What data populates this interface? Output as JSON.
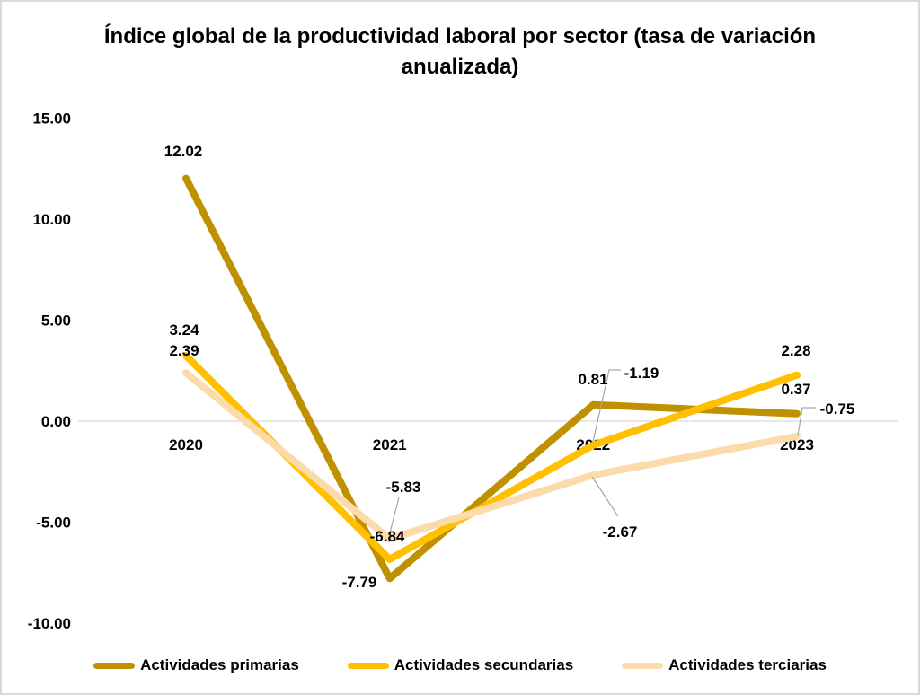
{
  "chart_data": {
    "type": "line",
    "title": "Índice global de la productividad laboral por sector (tasa de variación anualizada)",
    "categories": [
      "2020",
      "2021",
      "2022",
      "2023"
    ],
    "series": [
      {
        "name": "Actividades primarias",
        "color": "#BF9000",
        "values": [
          12.02,
          -7.79,
          0.81,
          0.37
        ]
      },
      {
        "name": "Actividades secundarias",
        "color": "#FFC000",
        "values": [
          3.24,
          -6.84,
          -1.19,
          2.28
        ]
      },
      {
        "name": "Actividades terciarias",
        "color": "#FCDBAB",
        "values": [
          2.39,
          -5.83,
          -2.67,
          -0.75
        ]
      }
    ],
    "y_axis": {
      "min": -10,
      "max": 15,
      "step": 5,
      "tick_labels": [
        "15.00",
        "10.00",
        "5.00",
        "0.00",
        "-5.00",
        "-10.00"
      ]
    },
    "xlabel": "",
    "ylabel": "",
    "grid": "zero-line-only",
    "data_labels": true,
    "legend_position": "bottom"
  },
  "styles": {
    "background": "#FFFFFF",
    "frame_border": "#D9D9D9",
    "grid_color": "#D9D9D9",
    "leader_color": "#A6A6A6",
    "text_color": "#000000"
  }
}
